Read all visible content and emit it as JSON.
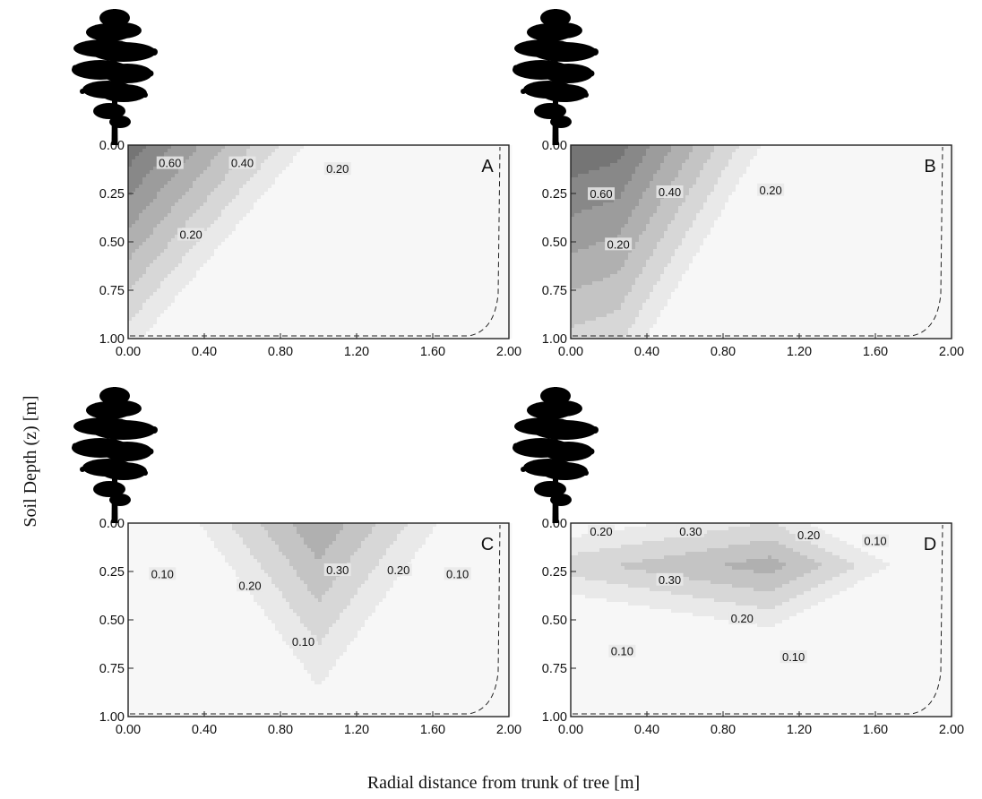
{
  "chart_data": {
    "type": "contour",
    "xlabel": "Radial distance from trunk of tree [m]",
    "ylabel": "Soil Depth (z) [m]",
    "xlim": [
      0,
      2
    ],
    "ylim": [
      0,
      1
    ],
    "x_ticks": [
      "0.00",
      "0.40",
      "0.80",
      "1.20",
      "1.60",
      "2.00"
    ],
    "y_ticks": [
      "0.00",
      "0.25",
      "0.50",
      "0.75",
      "1.00"
    ],
    "panels": [
      {
        "label": "A",
        "contour_labels": [
          {
            "text": "0.60",
            "x": 0.22,
            "z": 0.1
          },
          {
            "text": "0.40",
            "x": 0.6,
            "z": 0.1
          },
          {
            "text": "0.20",
            "x": 1.1,
            "z": 0.13
          },
          {
            "text": "0.20",
            "x": 0.33,
            "z": 0.47
          }
        ]
      },
      {
        "label": "B",
        "contour_labels": [
          {
            "text": "0.60",
            "x": 0.16,
            "z": 0.26
          },
          {
            "text": "0.40",
            "x": 0.52,
            "z": 0.25
          },
          {
            "text": "0.20",
            "x": 1.05,
            "z": 0.24
          },
          {
            "text": "0.20",
            "x": 0.25,
            "z": 0.52
          }
        ]
      },
      {
        "label": "C",
        "contour_labels": [
          {
            "text": "0.30",
            "x": 1.1,
            "z": 0.25
          },
          {
            "text": "0.20",
            "x": 1.42,
            "z": 0.25
          },
          {
            "text": "0.10",
            "x": 1.73,
            "z": 0.27
          },
          {
            "text": "0.20",
            "x": 0.64,
            "z": 0.33
          },
          {
            "text": "0.10",
            "x": 0.18,
            "z": 0.27
          },
          {
            "text": "0.10",
            "x": 0.92,
            "z": 0.62
          }
        ]
      },
      {
        "label": "D",
        "contour_labels": [
          {
            "text": "0.20",
            "x": 0.16,
            "z": 0.05
          },
          {
            "text": "0.30",
            "x": 0.63,
            "z": 0.05
          },
          {
            "text": "0.20",
            "x": 1.25,
            "z": 0.07
          },
          {
            "text": "0.10",
            "x": 1.6,
            "z": 0.1
          },
          {
            "text": "0.30",
            "x": 0.52,
            "z": 0.3
          },
          {
            "text": "0.20",
            "x": 0.9,
            "z": 0.5
          },
          {
            "text": "0.10",
            "x": 0.27,
            "z": 0.67
          },
          {
            "text": "0.10",
            "x": 1.17,
            "z": 0.7
          }
        ]
      }
    ]
  }
}
